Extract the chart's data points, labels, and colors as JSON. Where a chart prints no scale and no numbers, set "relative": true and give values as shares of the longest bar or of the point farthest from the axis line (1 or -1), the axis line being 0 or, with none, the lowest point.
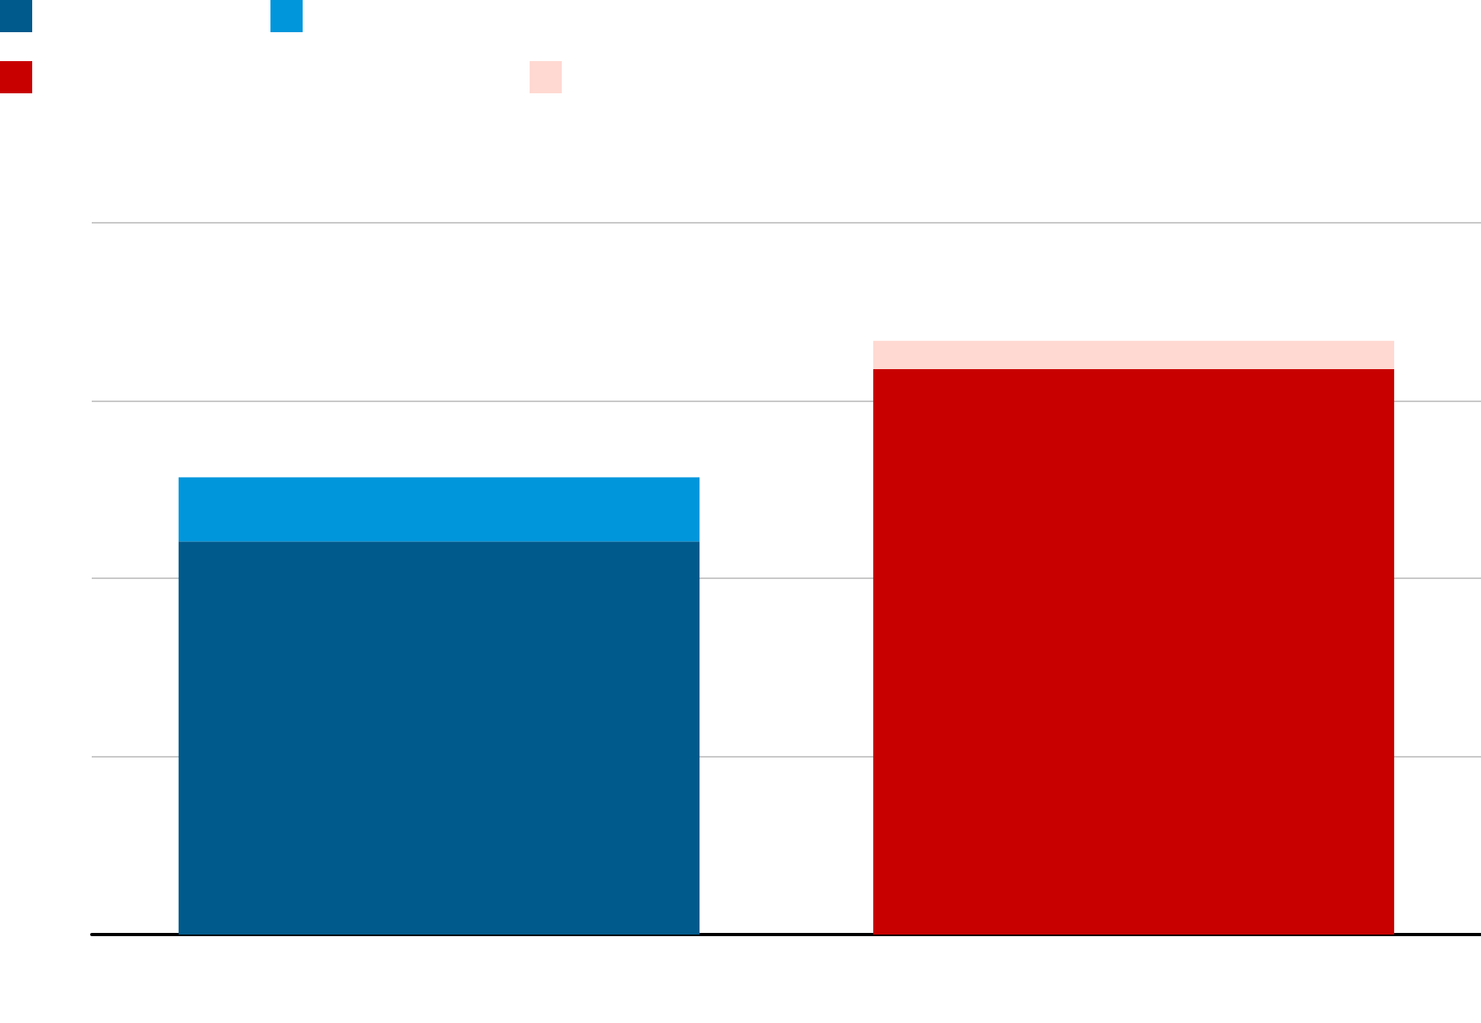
{
  "chart_data": {
    "type": "bar",
    "relative": true,
    "stacked": true,
    "categories": [
      null,
      null
    ],
    "series": [
      {
        "color": "#005a8c",
        "values": [
          0.662,
          null
        ]
      },
      {
        "color": "#0096dc",
        "values": [
          0.108,
          null
        ]
      },
      {
        "color": "#c80000",
        "values": [
          null,
          0.952
        ]
      },
      {
        "color": "#ffd9d2",
        "values": [
          null,
          0.048
        ]
      }
    ],
    "grid": "y"
  }
}
